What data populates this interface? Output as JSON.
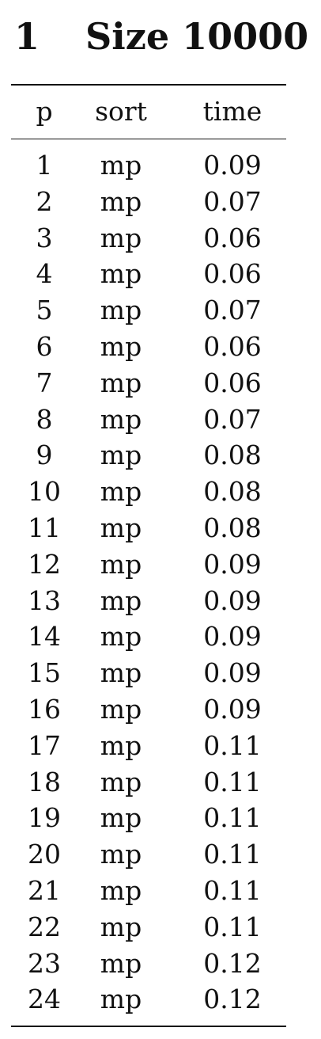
{
  "section": {
    "number": "1",
    "title": "Size 10000"
  },
  "table": {
    "headers": {
      "p": "p",
      "sort": "sort",
      "time": "time"
    },
    "rows": [
      {
        "p": "1",
        "sort": "mp",
        "time": "0.09"
      },
      {
        "p": "2",
        "sort": "mp",
        "time": "0.07"
      },
      {
        "p": "3",
        "sort": "mp",
        "time": "0.06"
      },
      {
        "p": "4",
        "sort": "mp",
        "time": "0.06"
      },
      {
        "p": "5",
        "sort": "mp",
        "time": "0.07"
      },
      {
        "p": "6",
        "sort": "mp",
        "time": "0.06"
      },
      {
        "p": "7",
        "sort": "mp",
        "time": "0.06"
      },
      {
        "p": "8",
        "sort": "mp",
        "time": "0.07"
      },
      {
        "p": "9",
        "sort": "mp",
        "time": "0.08"
      },
      {
        "p": "10",
        "sort": "mp",
        "time": "0.08"
      },
      {
        "p": "11",
        "sort": "mp",
        "time": "0.08"
      },
      {
        "p": "12",
        "sort": "mp",
        "time": "0.09"
      },
      {
        "p": "13",
        "sort": "mp",
        "time": "0.09"
      },
      {
        "p": "14",
        "sort": "mp",
        "time": "0.09"
      },
      {
        "p": "15",
        "sort": "mp",
        "time": "0.09"
      },
      {
        "p": "16",
        "sort": "mp",
        "time": "0.09"
      },
      {
        "p": "17",
        "sort": "mp",
        "time": "0.11"
      },
      {
        "p": "18",
        "sort": "mp",
        "time": "0.11"
      },
      {
        "p": "19",
        "sort": "mp",
        "time": "0.11"
      },
      {
        "p": "20",
        "sort": "mp",
        "time": "0.11"
      },
      {
        "p": "21",
        "sort": "mp",
        "time": "0.11"
      },
      {
        "p": "22",
        "sort": "mp",
        "time": "0.11"
      },
      {
        "p": "23",
        "sort": "mp",
        "time": "0.12"
      },
      {
        "p": "24",
        "sort": "mp",
        "time": "0.12"
      }
    ]
  }
}
